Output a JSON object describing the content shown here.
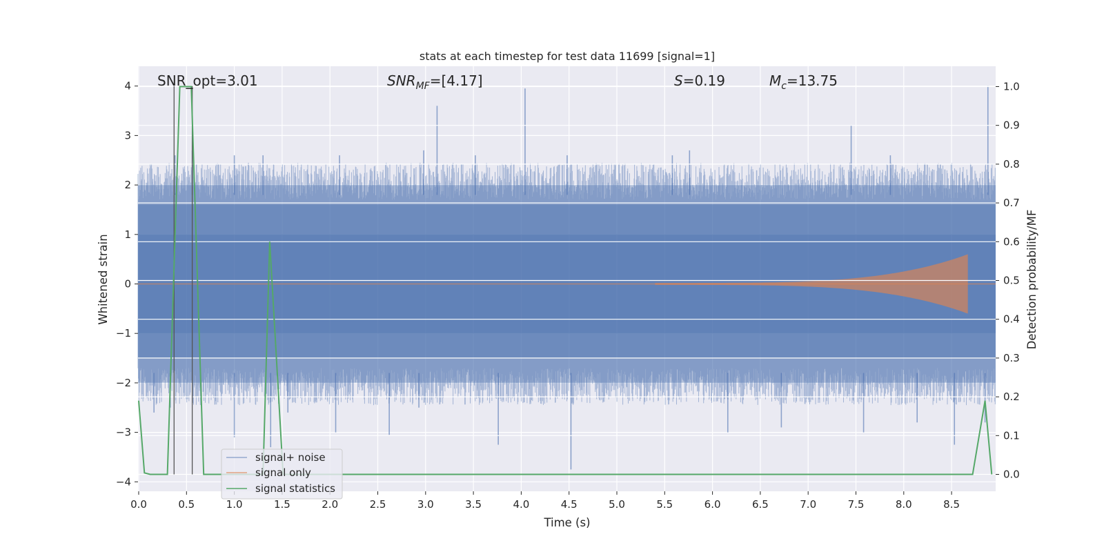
{
  "chart_data": {
    "type": "line",
    "title": "stats at each timestep for test data 11699 [signal=1]",
    "xlabel": "Time (s)",
    "ylabel": "Whitened strain",
    "ylabel_right": "Detection probability/MF",
    "xlim": [
      0.0,
      9.0
    ],
    "ylim": [
      -4.3,
      4.3
    ],
    "ylim_right": [
      -0.046,
      1.046
    ],
    "x_ticks": [
      "0.0",
      "0.5",
      "1.0",
      "1.5",
      "2.0",
      "2.5",
      "3.0",
      "3.5",
      "4.0",
      "4.5",
      "5.0",
      "5.5",
      "6.0",
      "6.5",
      "7.0",
      "7.5",
      "8.0",
      "8.5"
    ],
    "y_ticks": [
      "4",
      "3",
      "2",
      "1",
      "0",
      "−1",
      "−2",
      "−3",
      "−4"
    ],
    "y_right_ticks": [
      "1.0",
      "0.9",
      "0.8",
      "0.7",
      "0.6",
      "0.5",
      "0.4",
      "0.3",
      "0.2",
      "0.1",
      "0.0"
    ],
    "grid": true,
    "legend_position": "lower-left",
    "annotations": {
      "snr_opt": "SNR_opt=3.01",
      "snr_mf_main": "SNR",
      "snr_mf_sub": "MF",
      "snr_mf_value": "=[4.17]",
      "s_main": "S",
      "s_value": "=0.19",
      "mc_main": "M",
      "mc_sub": "c",
      "mc_value": "=13.75"
    },
    "series": [
      {
        "name": "signal+ noise",
        "color": "#4c72b0",
        "axis": "left",
        "envelope_upper": 2.0,
        "envelope_lower": -2.0,
        "dense_upper": 1.6,
        "dense_lower": -1.5,
        "spikes": [
          [
            0.38,
            2.6
          ],
          [
            0.56,
            2.7
          ],
          [
            1.0,
            2.6
          ],
          [
            1.3,
            2.6
          ],
          [
            2.1,
            2.6
          ],
          [
            2.98,
            2.7
          ],
          [
            3.12,
            3.6
          ],
          [
            3.52,
            2.6
          ],
          [
            4.04,
            3.95
          ],
          [
            4.48,
            2.6
          ],
          [
            5.58,
            2.6
          ],
          [
            5.76,
            2.7
          ],
          [
            7.45,
            3.2
          ],
          [
            7.86,
            2.6
          ],
          [
            8.88,
            4.0
          ],
          [
            0.16,
            -2.6
          ],
          [
            0.33,
            -2.5
          ],
          [
            1.0,
            -3.1
          ],
          [
            1.38,
            -3.3
          ],
          [
            1.56,
            -2.6
          ],
          [
            2.06,
            -3.0
          ],
          [
            2.62,
            -3.05
          ],
          [
            2.93,
            -2.5
          ],
          [
            3.76,
            -3.25
          ],
          [
            4.52,
            -3.75
          ],
          [
            6.16,
            -3.0
          ],
          [
            6.72,
            -2.9
          ],
          [
            7.58,
            -3.0
          ],
          [
            8.14,
            -2.8
          ],
          [
            8.53,
            -3.25
          ],
          [
            8.85,
            -2.8
          ]
        ]
      },
      {
        "name": "signal only",
        "color": "#dd8452",
        "axis": "left",
        "chirp_start": 5.4,
        "chirp_end": 8.67,
        "amplitude_start": 0.02,
        "amplitude_end": 0.6
      },
      {
        "name": "signal statistics",
        "color": "#55a868",
        "axis": "right",
        "x": [
          0.0,
          0.06,
          0.12,
          0.3,
          0.43,
          0.55,
          0.68,
          1.3,
          1.37,
          1.51,
          8.72,
          8.85,
          8.92
        ],
        "values": [
          0.19,
          0.004,
          0.0,
          0.0,
          1.0,
          1.0,
          0.0,
          0.0,
          0.6,
          0.0,
          0.0,
          0.19,
          0.0
        ]
      }
    ],
    "vertical_markers_x": [
      0.37,
      0.56
    ]
  }
}
